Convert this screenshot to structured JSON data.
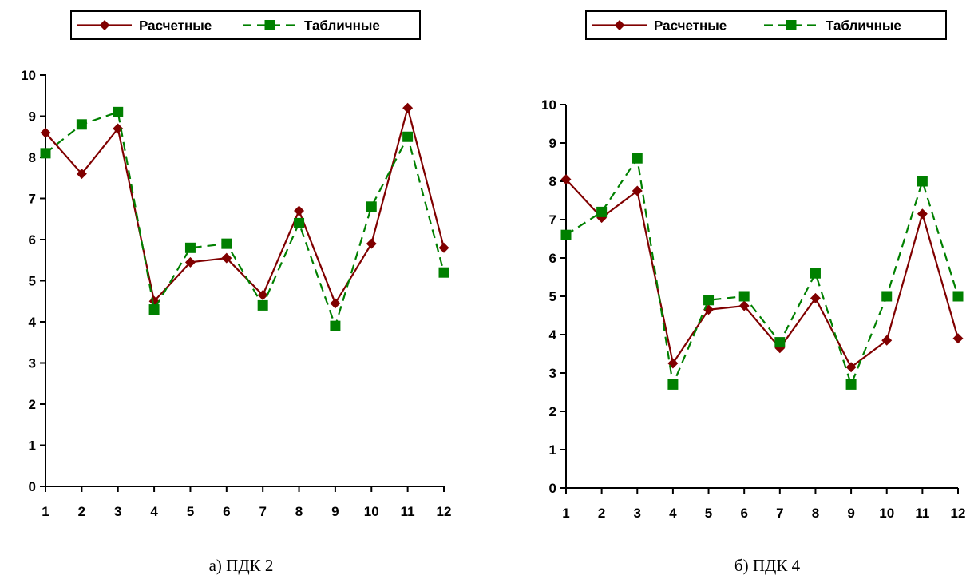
{
  "chart_data": [
    {
      "type": "line",
      "caption": "а) ПДК 2",
      "x": [
        1,
        2,
        3,
        4,
        5,
        6,
        7,
        8,
        9,
        10,
        11,
        12
      ],
      "ylim": [
        0,
        10
      ],
      "yticks": [
        0,
        1,
        2,
        3,
        4,
        5,
        6,
        7,
        8,
        9,
        10
      ],
      "legend_position": "top",
      "series": [
        {
          "name": "Расчетные",
          "color": "#800000",
          "style": "solid",
          "marker": "diamond",
          "values": [
            8.6,
            7.6,
            8.7,
            4.5,
            5.45,
            5.55,
            4.65,
            6.7,
            4.45,
            5.9,
            9.2,
            5.8
          ]
        },
        {
          "name": "Табличные",
          "color": "#008000",
          "style": "dashed",
          "marker": "square",
          "values": [
            8.1,
            8.8,
            9.1,
            4.3,
            5.8,
            5.9,
            4.4,
            6.4,
            3.9,
            6.8,
            8.5,
            5.2
          ]
        }
      ]
    },
    {
      "type": "line",
      "caption": "б) ПДК 4",
      "x": [
        1,
        2,
        3,
        4,
        5,
        6,
        7,
        8,
        9,
        10,
        11,
        12
      ],
      "ylim": [
        0,
        10
      ],
      "yticks": [
        0,
        1,
        2,
        3,
        4,
        5,
        6,
        7,
        8,
        9,
        10
      ],
      "legend_position": "top",
      "series": [
        {
          "name": "Расчетные",
          "color": "#800000",
          "style": "solid",
          "marker": "diamond",
          "values": [
            8.05,
            7.05,
            7.75,
            3.25,
            4.65,
            4.75,
            3.65,
            4.95,
            3.15,
            3.85,
            7.15,
            3.9
          ]
        },
        {
          "name": "Табличные",
          "color": "#008000",
          "style": "dashed",
          "marker": "square",
          "values": [
            6.6,
            7.2,
            8.6,
            2.7,
            4.9,
            5.0,
            3.8,
            5.6,
            2.7,
            5.0,
            8.0,
            5.0
          ]
        }
      ]
    }
  ]
}
